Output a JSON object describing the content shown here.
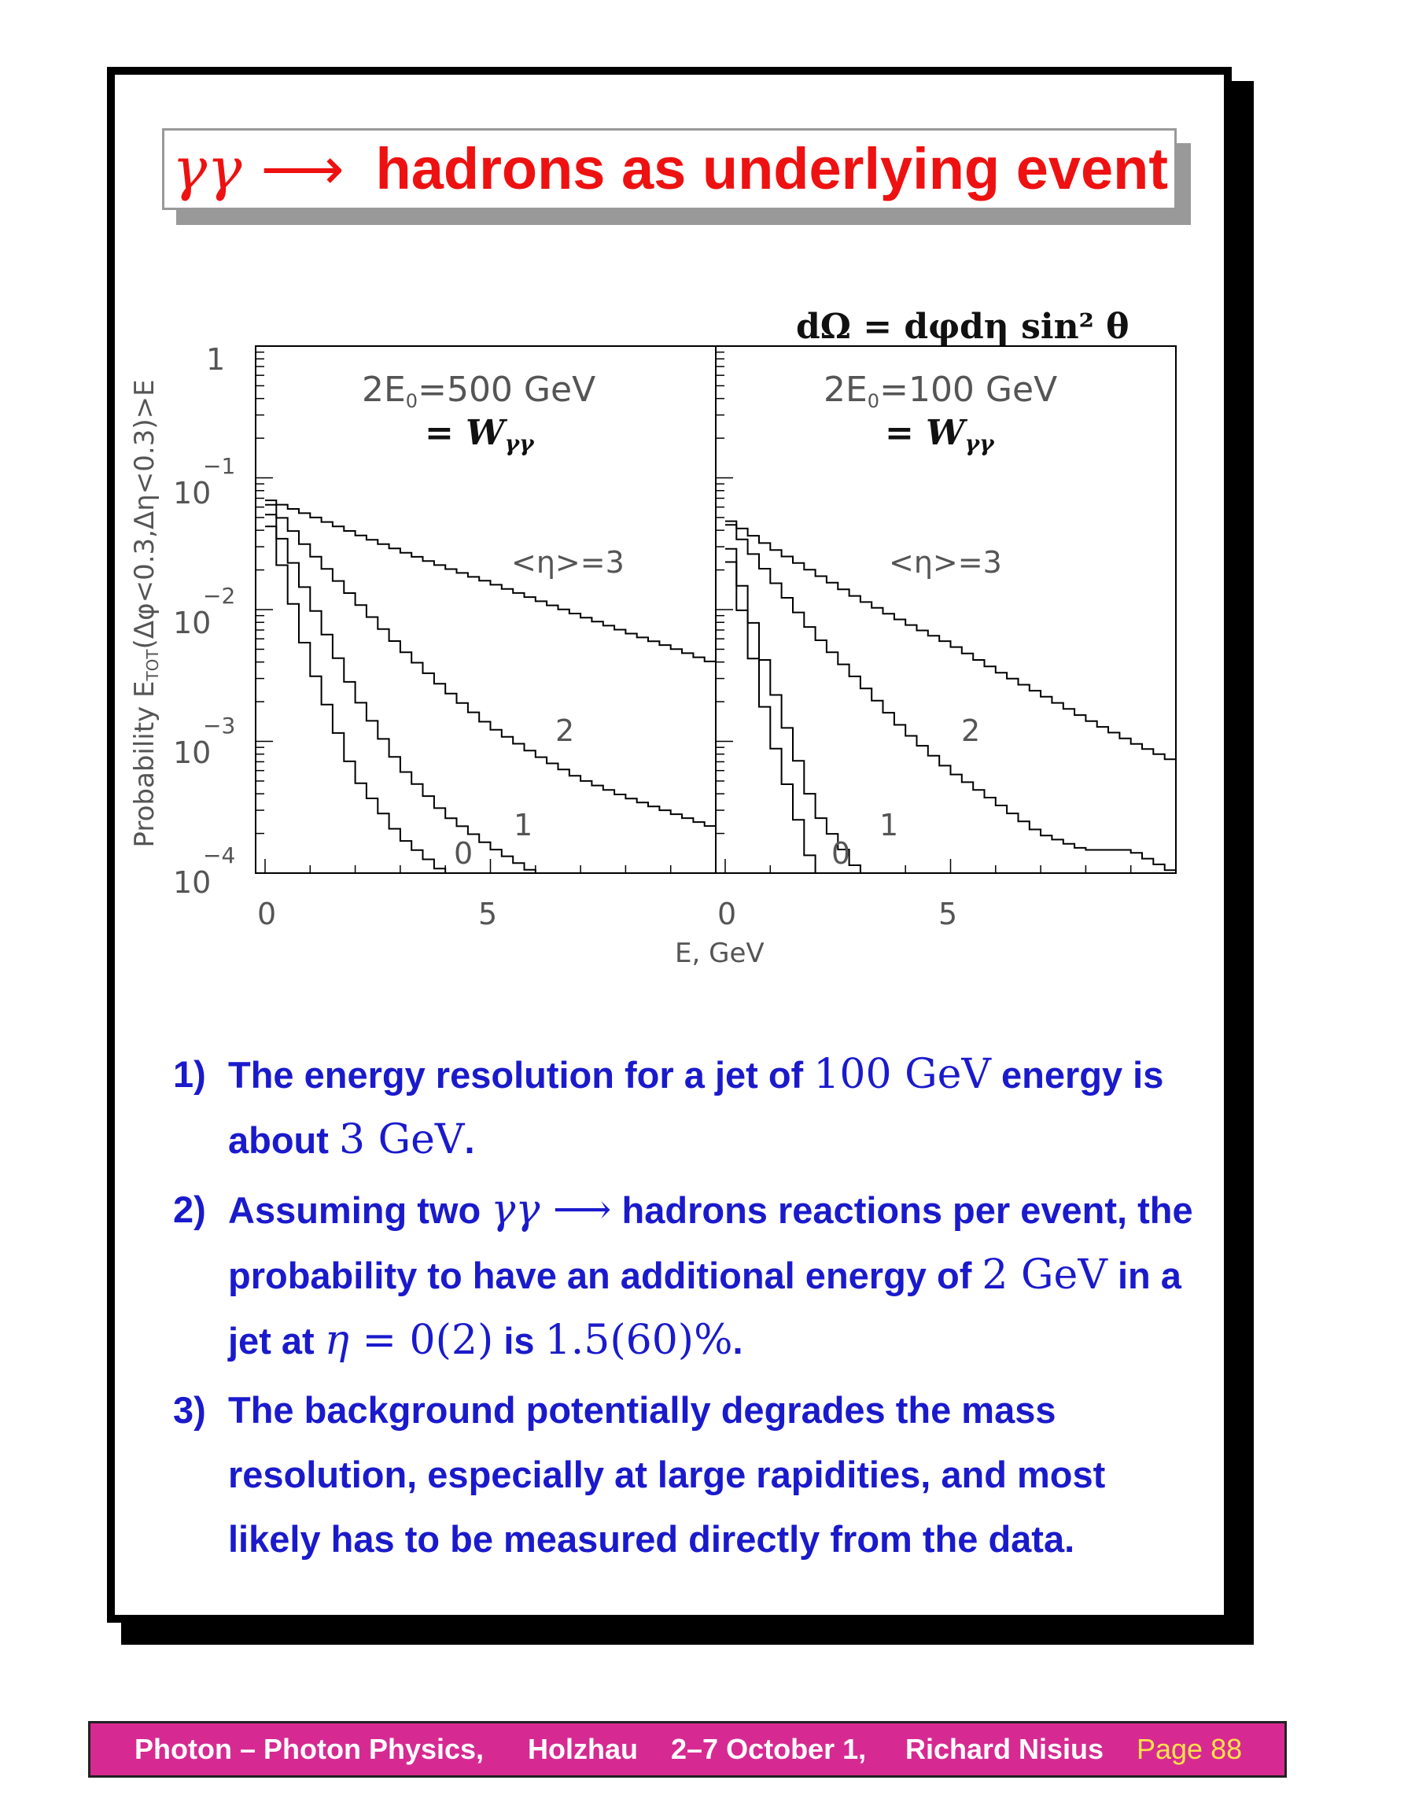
{
  "title": {
    "gamma": "γγ",
    "arrow": "⟶",
    "text": "hadrons as underlying event"
  },
  "figure": {
    "formula": "dΩ = dφdη sin² θ",
    "ylabel": "Probability E",
    "ylabel_sub": "TOT",
    "ylabel_rest": "(Δφ<0.3,Δη<0.3)>E",
    "xlabel": "E, GeV",
    "ytick_1": "1",
    "ytick_base": "10",
    "ytick_exp": [
      "−1",
      "−2",
      "−3",
      "−4"
    ],
    "xticks": [
      "0",
      "5"
    ],
    "panels": [
      {
        "energy_pre": "2E",
        "energy_sub": "0",
        "energy_post": "=500 GeV",
        "equals": "= W",
        "w_sub": "γγ"
      },
      {
        "energy_pre": "2E",
        "energy_sub": "0",
        "energy_post": "=100 GeV",
        "equals": "= W",
        "w_sub": "γγ"
      }
    ],
    "curve_labels": [
      "<η>=3",
      "2",
      "1",
      "0"
    ]
  },
  "chart_data": {
    "type": "line",
    "xlabel": "E, GeV",
    "ylabel": "Probability E_TOT(Δφ<0.3,Δη<0.3)>E",
    "yscale": "log",
    "ylim": [
      0.0001,
      1
    ],
    "panels": [
      {
        "title": "2E0=500 GeV = Wγγ",
        "xlim": [
          0,
          10
        ],
        "series": [
          {
            "name": "<η>=3",
            "x": [
              0,
              1,
              2,
              3,
              4,
              5,
              6,
              7,
              8,
              9,
              10
            ],
            "y": [
              0.07,
              0.052,
              0.038,
              0.028,
              0.021,
              0.016,
              0.012,
              0.009,
              0.0068,
              0.0052,
              0.0039
            ]
          },
          {
            "name": "2",
            "x": [
              0,
              1,
              2,
              3,
              4,
              5,
              6,
              7,
              8,
              9,
              10
            ],
            "y": [
              0.07,
              0.028,
              0.012,
              0.0052,
              0.0025,
              0.0013,
              0.0008,
              0.00052,
              0.00038,
              0.00029,
              0.00022
            ]
          },
          {
            "name": "1",
            "x": [
              0,
              1,
              2,
              3,
              4,
              5,
              6
            ],
            "y": [
              0.065,
              0.012,
              0.0023,
              0.00065,
              0.00028,
              0.00016,
              0.0001
            ]
          },
          {
            "name": "0",
            "x": [
              0,
              1,
              2,
              3,
              4
            ],
            "y": [
              0.06,
              0.004,
              0.00055,
              0.00019,
              0.0001
            ]
          }
        ]
      },
      {
        "title": "2E0=100 GeV = Wγγ",
        "xlim": [
          0,
          10
        ],
        "series": [
          {
            "name": "<η>=3",
            "x": [
              0,
              1,
              2,
              3,
              4,
              5,
              6,
              7,
              8,
              9,
              10
            ],
            "y": [
              0.05,
              0.03,
              0.019,
              0.012,
              0.008,
              0.0055,
              0.0035,
              0.0023,
              0.0015,
              0.001,
              0.0007
            ]
          },
          {
            "name": "2",
            "x": [
              0,
              1,
              2,
              3,
              4,
              5,
              6,
              7,
              8,
              9,
              10
            ],
            "y": [
              0.05,
              0.018,
              0.0065,
              0.0028,
              0.0012,
              0.0006,
              0.00035,
              0.0002,
              0.00015,
              0.00015,
              0.0001
            ]
          },
          {
            "name": "1",
            "x": [
              0,
              1,
              2,
              3
            ],
            "y": [
              0.04,
              0.003,
              0.0003,
              0.0001
            ]
          },
          {
            "name": "0",
            "x": [
              0,
              1,
              2
            ],
            "y": [
              0.035,
              0.0012,
              0.0001
            ]
          }
        ]
      }
    ]
  },
  "items": [
    {
      "num": "1)",
      "parts": [
        "The energy resolution for a jet of ",
        "100 GeV",
        " energy is about ",
        "3 GeV",
        "."
      ]
    },
    {
      "num": "2)",
      "parts": [
        "Assuming two ",
        "γγ ⟶",
        " hadrons reactions per event, the probability to have an additional energy of ",
        "2 GeV",
        " in a jet at ",
        "η",
        " = 0(2)",
        " is ",
        "1.5(60)%",
        "."
      ]
    },
    {
      "num": "3)",
      "parts": [
        "The background potentially degrades the mass resolution, especially at large rapidities, and most likely has to be measured directly from the data."
      ]
    }
  ],
  "footer": {
    "title": "Photon – Photon Physics,",
    "place": "Holzhau",
    "date": "2–7 October 1,",
    "author": "Richard Nisius",
    "page": "Page 88"
  },
  "colors": {
    "title": "#ee1111",
    "body": "#1a1acc",
    "footer_bg": "#d62a92",
    "footer_page": "#ffe24a"
  }
}
